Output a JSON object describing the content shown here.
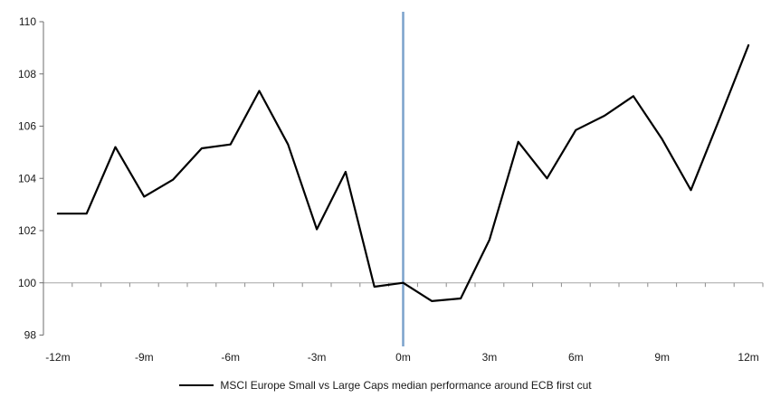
{
  "legend": {
    "label": "MSCI Europe Small vs Large Caps median performance around ECB first cut"
  },
  "chart_data": {
    "type": "line",
    "title": "",
    "xlabel": "",
    "ylabel": "",
    "categories": [
      "-12m",
      "-11m",
      "-10m",
      "-9m",
      "-8m",
      "-7m",
      "-6m",
      "-5m",
      "-4m",
      "-3m",
      "-2m",
      "-1m",
      "0m",
      "1m",
      "2m",
      "3m",
      "4m",
      "5m",
      "6m",
      "7m",
      "8m",
      "9m",
      "10m",
      "11m",
      "12m"
    ],
    "xtick_labels_shown": [
      "-12m",
      "-9m",
      "-6m",
      "-3m",
      "0m",
      "3m",
      "6m",
      "9m",
      "12m"
    ],
    "series": [
      {
        "name": "MSCI Europe Small vs Large Caps median performance around ECB first cut",
        "values": [
          102.65,
          102.65,
          105.2,
          103.3,
          103.95,
          105.15,
          105.3,
          107.35,
          105.3,
          102.05,
          104.25,
          99.85,
          100.0,
          99.3,
          99.4,
          101.65,
          105.4,
          104.0,
          105.85,
          106.4,
          107.15,
          105.5,
          103.55,
          106.3,
          109.1
        ]
      }
    ],
    "ylim": [
      98,
      110
    ],
    "yticks": [
      98,
      100,
      102,
      104,
      106,
      108,
      110
    ],
    "baseline_value": 100,
    "event_line_category": "0m",
    "legend_position": "bottom",
    "grid": "baseline-only",
    "colors": {
      "series": "#000000",
      "event_line": "#7BA2CC",
      "baseline": "#A6A6A6",
      "category_ticks": "#8C8C8C",
      "y_axis": "#6E6E6E",
      "labels": "#1a1a1a"
    }
  }
}
